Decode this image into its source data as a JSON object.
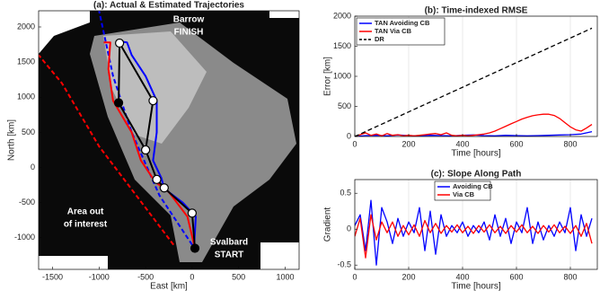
{
  "chart_data": [
    {
      "type": "line",
      "title": "(a): Actual & Estimated Trajectories",
      "xlabel": "East [km]",
      "ylabel": "North [km]",
      "xlim": [
        -1650,
        1150
      ],
      "ylim": [
        -1450,
        2230
      ],
      "xticks": [
        -1500,
        -1000,
        -500,
        0,
        500,
        1000
      ],
      "yticks": [
        -1000,
        -500,
        0,
        500,
        1000,
        1500,
        2000
      ],
      "grid": false,
      "annotations": [
        "Barrow",
        "FINISH",
        "Area out",
        "of interest",
        "Svalbard",
        "START"
      ],
      "series": [
        {
          "color": "#ff0000",
          "dashed": true,
          "x": [
            -200,
            -600,
            -1000,
            -1400,
            -1650
          ],
          "y": [
            -1100,
            -400,
            300,
            1200,
            1600
          ]
        },
        {
          "color": "#0000ff",
          "dashed": true,
          "x": [
            0,
            -350,
            -650,
            -850,
            -1000
          ],
          "y": [
            -1100,
            -400,
            500,
            1300,
            2230
          ]
        },
        {
          "color": "#0000ff",
          "x": [
            20,
            40,
            -100,
            -300,
            -330,
            -420,
            -380,
            -380,
            -500,
            -650,
            -700,
            -760
          ],
          "y": [
            -1150,
            -700,
            -500,
            -300,
            -150,
            100,
            500,
            950,
            1300,
            1600,
            1780,
            1790
          ]
        },
        {
          "color": "#ff0000",
          "x": [
            30,
            -50,
            -250,
            -400,
            -550,
            -650,
            -850,
            -900,
            -880,
            -950
          ],
          "y": [
            -1150,
            -700,
            -350,
            -200,
            100,
            500,
            950,
            1400,
            1780,
            1780
          ]
        },
        {
          "color": "#000000",
          "markers": true,
          "x": [
            30,
            0,
            -300,
            -380,
            -500,
            -420,
            -780,
            -790,
            -500
          ],
          "y": [
            -1150,
            -650,
            -290,
            -170,
            250,
            950,
            1770,
            920,
            250
          ]
        }
      ]
    },
    {
      "type": "line",
      "title": "(b): Time-indexed RMSE",
      "xlabel": "Time [hours]",
      "ylabel": "Error [km]",
      "xlim": [
        0,
        900
      ],
      "ylim": [
        0,
        2000
      ],
      "xticks": [
        0,
        200,
        400,
        600,
        800
      ],
      "yticks": [
        0,
        500,
        1000,
        1500,
        2000
      ],
      "grid": true,
      "legend": "upper left",
      "series": [
        {
          "name": "TAN Avoiding CB",
          "color": "#0000ff",
          "x": [
            0,
            40,
            80,
            120,
            160,
            200,
            240,
            280,
            320,
            360,
            400,
            440,
            480,
            520,
            560,
            600,
            640,
            680,
            720,
            760,
            800,
            840,
            880
          ],
          "y": [
            0,
            15,
            20,
            10,
            25,
            15,
            10,
            20,
            15,
            10,
            20,
            25,
            15,
            10,
            20,
            15,
            10,
            15,
            20,
            25,
            30,
            40,
            80
          ]
        },
        {
          "name": "TAN Via CB",
          "color": "#ff0000",
          "x": [
            0,
            20,
            40,
            60,
            80,
            100,
            120,
            140,
            160,
            180,
            200,
            220,
            240,
            260,
            280,
            300,
            320,
            340,
            360,
            380,
            400,
            420,
            440,
            460,
            480,
            500,
            520,
            540,
            560,
            580,
            600,
            620,
            640,
            660,
            680,
            700,
            720,
            740,
            760,
            780,
            800,
            820,
            840,
            860,
            880
          ],
          "y": [
            0,
            30,
            60,
            20,
            40,
            10,
            50,
            20,
            30,
            10,
            20,
            10,
            20,
            30,
            40,
            50,
            30,
            60,
            20,
            10,
            20,
            10,
            20,
            30,
            40,
            60,
            90,
            130,
            170,
            210,
            250,
            290,
            320,
            345,
            360,
            370,
            370,
            350,
            300,
            230,
            160,
            110,
            90,
            140,
            200
          ]
        },
        {
          "name": "DR",
          "color": "#000000",
          "dashed": true,
          "x": [
            0,
            880
          ],
          "y": [
            0,
            1800
          ]
        }
      ]
    },
    {
      "type": "line",
      "title": "(c): Slope Along Path",
      "xlabel": "Time [hours]",
      "ylabel": "Gradient",
      "xlim": [
        0,
        900
      ],
      "ylim": [
        -0.56,
        0.69
      ],
      "xticks": [
        0,
        200,
        400,
        600,
        800
      ],
      "yticks": [
        -0.5,
        0,
        0.5
      ],
      "grid": true,
      "legend": "upper center",
      "series": [
        {
          "name": "Avoiding CB",
          "color": "#0000ff",
          "x": [
            0,
            20,
            40,
            60,
            80,
            100,
            120,
            140,
            160,
            180,
            200,
            220,
            240,
            260,
            280,
            300,
            320,
            340,
            360,
            380,
            400,
            420,
            440,
            460,
            480,
            500,
            520,
            540,
            560,
            580,
            600,
            620,
            640,
            660,
            680,
            700,
            720,
            740,
            760,
            780,
            800,
            820,
            840,
            860,
            880
          ],
          "y": [
            0.05,
            0.2,
            -0.3,
            0.4,
            -0.5,
            0.3,
            0.1,
            -0.2,
            0.15,
            -0.1,
            0.1,
            -0.05,
            0.3,
            -0.3,
            0.25,
            -0.35,
            0.2,
            -0.1,
            0.05,
            -0.05,
            0.1,
            -0.1,
            0.05,
            -0.05,
            0.1,
            -0.15,
            0.2,
            -0.1,
            0.15,
            -0.2,
            0.1,
            -0.05,
            0.3,
            -0.2,
            0.1,
            -0.15,
            0.05,
            -0.1,
            0.1,
            -0.05,
            0.3,
            -0.3,
            0.2,
            -0.1,
            0.15
          ]
        },
        {
          "name": "Via CB",
          "color": "#ff0000",
          "x": [
            0,
            20,
            40,
            60,
            80,
            100,
            120,
            140,
            160,
            180,
            200,
            220,
            240,
            260,
            280,
            300,
            320,
            340,
            360,
            380,
            400,
            420,
            440,
            460,
            480,
            500,
            520,
            540,
            560,
            580,
            600,
            620,
            640,
            660,
            680,
            700,
            720,
            740,
            760,
            780,
            800,
            820,
            840,
            860,
            880
          ],
          "y": [
            -0.1,
            0.15,
            -0.4,
            0.2,
            -0.15,
            0.1,
            -0.05,
            0.1,
            -0.1,
            0.05,
            -0.08,
            0.06,
            -0.1,
            0.12,
            -0.05,
            0.08,
            -0.06,
            0.05,
            -0.04,
            0.06,
            -0.05,
            0.04,
            -0.06,
            0.05,
            -0.04,
            0.06,
            -0.05,
            0.04,
            -0.06,
            0.05,
            -0.04,
            0.06,
            -0.05,
            0.04,
            -0.06,
            0.05,
            -0.04,
            0.06,
            -0.05,
            0.04,
            -0.06,
            0.05,
            -0.1,
            0.08,
            -0.2
          ]
        }
      ]
    }
  ]
}
